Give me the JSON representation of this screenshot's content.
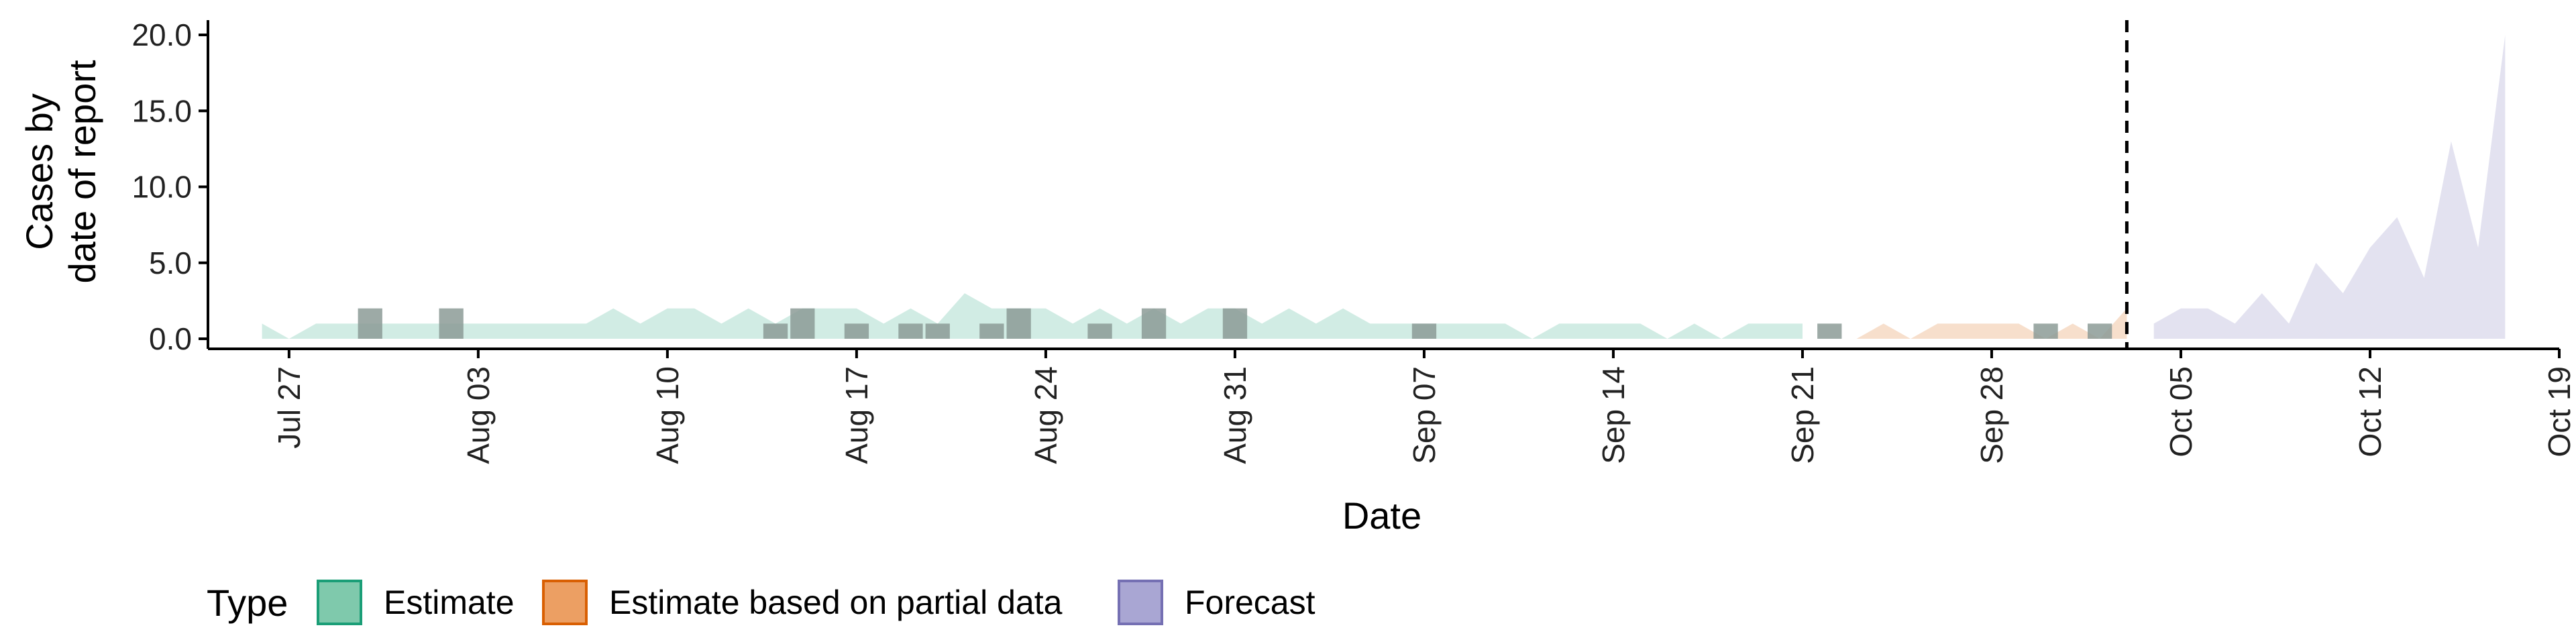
{
  "chart_data": {
    "type": "area",
    "xlabel": "Date",
    "ylabel_lines": [
      "Cases by",
      "date of report"
    ],
    "yticks": [
      "0.0",
      "5.0",
      "10.0",
      "15.0",
      "20.0"
    ],
    "ylim": [
      0,
      20
    ],
    "xlim": [
      "2020-07-24",
      "2020-10-19"
    ],
    "xticks": [
      {
        "date": "2020-07-27",
        "label": "Jul 27"
      },
      {
        "date": "2020-08-03",
        "label": "Aug 03"
      },
      {
        "date": "2020-08-10",
        "label": "Aug 10"
      },
      {
        "date": "2020-08-17",
        "label": "Aug 17"
      },
      {
        "date": "2020-08-24",
        "label": "Aug 24"
      },
      {
        "date": "2020-08-31",
        "label": "Aug 31"
      },
      {
        "date": "2020-09-07",
        "label": "Sep 07"
      },
      {
        "date": "2020-09-14",
        "label": "Sep 14"
      },
      {
        "date": "2020-09-21",
        "label": "Sep 21"
      },
      {
        "date": "2020-09-28",
        "label": "Sep 28"
      },
      {
        "date": "2020-10-05",
        "label": "Oct 05"
      },
      {
        "date": "2020-10-12",
        "label": "Oct 12"
      },
      {
        "date": "2020-10-19",
        "label": "Oct 19"
      }
    ],
    "vline_date": "2020-10-03",
    "legend": {
      "title": "Type",
      "position": "bottom",
      "entries": [
        {
          "label": "Estimate",
          "fill": "#7fc9ac",
          "stroke": "#1b9e77"
        },
        {
          "label": "Estimate based on partial data",
          "fill": "#ec9f63",
          "stroke": "#d95f02"
        },
        {
          "label": "Forecast",
          "fill": "#a9a6d3",
          "stroke": "#7570b3"
        }
      ]
    },
    "series": [
      {
        "name": "Estimate",
        "fill": "#1b9e77",
        "opacity": 0.2,
        "x": [
          "2020-07-26",
          "2020-07-27",
          "2020-07-28",
          "2020-07-29",
          "2020-07-30",
          "2020-07-31",
          "2020-08-01",
          "2020-08-02",
          "2020-08-03",
          "2020-08-04",
          "2020-08-05",
          "2020-08-06",
          "2020-08-07",
          "2020-08-08",
          "2020-08-09",
          "2020-08-10",
          "2020-08-11",
          "2020-08-12",
          "2020-08-13",
          "2020-08-14",
          "2020-08-15",
          "2020-08-16",
          "2020-08-17",
          "2020-08-18",
          "2020-08-19",
          "2020-08-20",
          "2020-08-21",
          "2020-08-22",
          "2020-08-23",
          "2020-08-24",
          "2020-08-25",
          "2020-08-26",
          "2020-08-27",
          "2020-08-28",
          "2020-08-29",
          "2020-08-30",
          "2020-08-31",
          "2020-09-01",
          "2020-09-02",
          "2020-09-03",
          "2020-09-04",
          "2020-09-05",
          "2020-09-06",
          "2020-09-07",
          "2020-09-08",
          "2020-09-09",
          "2020-09-10",
          "2020-09-11",
          "2020-09-12",
          "2020-09-13",
          "2020-09-14",
          "2020-09-15",
          "2020-09-16",
          "2020-09-17",
          "2020-09-18",
          "2020-09-19",
          "2020-09-20",
          "2020-09-21"
        ],
        "low": [
          0,
          0,
          0,
          0,
          0,
          0,
          0,
          0,
          0,
          0,
          0,
          0,
          0,
          0,
          0,
          0,
          0,
          0,
          0,
          0,
          0,
          0,
          0,
          0,
          0,
          0,
          0,
          0,
          0,
          0,
          0,
          0,
          0,
          0,
          0,
          0,
          0,
          0,
          0,
          0,
          0,
          0,
          0,
          0,
          0,
          0,
          0,
          0,
          0,
          0,
          0,
          0,
          0,
          0,
          0,
          0,
          0,
          0
        ],
        "high": [
          1,
          0,
          1,
          1,
          1,
          1,
          1,
          1,
          1,
          1,
          1,
          1,
          1,
          2,
          1,
          2,
          2,
          1,
          2,
          1,
          2,
          2,
          2,
          1,
          2,
          1,
          3,
          2,
          2,
          2,
          1,
          2,
          1,
          2,
          1,
          2,
          2,
          1,
          2,
          1,
          2,
          1,
          1,
          1,
          1,
          1,
          1,
          0,
          1,
          1,
          1,
          1,
          0,
          1,
          0,
          1,
          1,
          1
        ]
      },
      {
        "name": "Estimate based on partial data",
        "fill": "#d95f02",
        "opacity": 0.2,
        "x": [
          "2020-09-23",
          "2020-09-24",
          "2020-09-25",
          "2020-09-26",
          "2020-09-27",
          "2020-09-28",
          "2020-09-29",
          "2020-09-30",
          "2020-10-01",
          "2020-10-02",
          "2020-10-03"
        ],
        "low": [
          0,
          0,
          0,
          0,
          0,
          0,
          0,
          0,
          0,
          0,
          0
        ],
        "high": [
          0,
          1,
          0,
          1,
          1,
          1,
          1,
          0,
          1,
          0,
          2
        ]
      },
      {
        "name": "Forecast",
        "fill": "#7570b3",
        "opacity": 0.2,
        "x": [
          "2020-10-04",
          "2020-10-05",
          "2020-10-06",
          "2020-10-07",
          "2020-10-08",
          "2020-10-09",
          "2020-10-10",
          "2020-10-11",
          "2020-10-12",
          "2020-10-13",
          "2020-10-14",
          "2020-10-15",
          "2020-10-16",
          "2020-10-17"
        ],
        "low": [
          0,
          0,
          0,
          0,
          0,
          0,
          0,
          0,
          0,
          0,
          0,
          0,
          0,
          0
        ],
        "high": [
          1,
          2,
          2,
          1,
          3,
          1,
          5,
          3,
          6,
          8,
          4,
          13,
          6,
          20
        ]
      }
    ],
    "observed": {
      "name": "Cases",
      "color": "#8c9b97",
      "points": [
        {
          "x": "2020-07-30",
          "y": 2
        },
        {
          "x": "2020-08-02",
          "y": 2
        },
        {
          "x": "2020-08-14",
          "y": 1
        },
        {
          "x": "2020-08-15",
          "y": 2
        },
        {
          "x": "2020-08-17",
          "y": 1
        },
        {
          "x": "2020-08-19",
          "y": 1
        },
        {
          "x": "2020-08-20",
          "y": 1
        },
        {
          "x": "2020-08-22",
          "y": 1
        },
        {
          "x": "2020-08-23",
          "y": 2
        },
        {
          "x": "2020-08-26",
          "y": 1
        },
        {
          "x": "2020-08-28",
          "y": 2
        },
        {
          "x": "2020-08-31",
          "y": 2
        },
        {
          "x": "2020-09-07",
          "y": 1
        },
        {
          "x": "2020-09-22",
          "y": 1
        },
        {
          "x": "2020-09-30",
          "y": 1
        },
        {
          "x": "2020-10-02",
          "y": 1
        }
      ]
    }
  }
}
